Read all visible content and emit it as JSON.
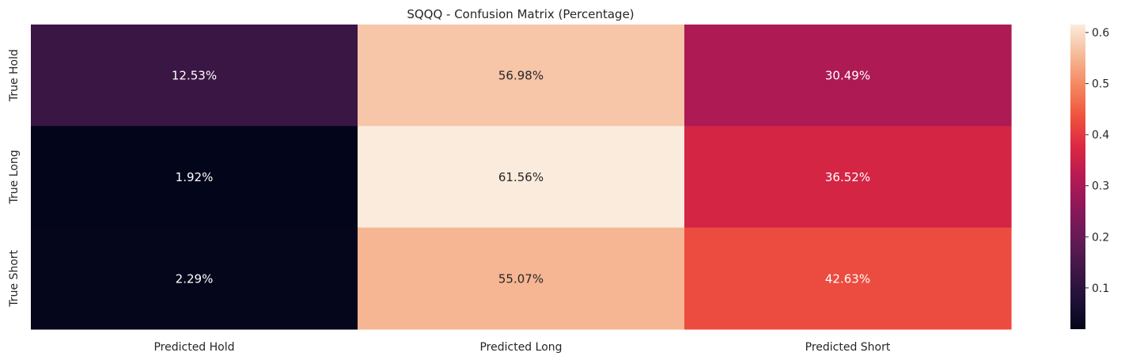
{
  "chart_data": {
    "type": "heatmap",
    "title": "SQQQ - Confusion Matrix (Percentage)",
    "xlabel": "",
    "ylabel": "",
    "x_categories": [
      "Predicted Hold",
      "Predicted Long",
      "Predicted Short"
    ],
    "y_categories": [
      "True Hold",
      "True Long",
      "True Short"
    ],
    "values": [
      [
        0.1253,
        0.5698,
        0.3049
      ],
      [
        0.0192,
        0.6156,
        0.3652
      ],
      [
        0.0229,
        0.5507,
        0.4263
      ]
    ],
    "annotations": [
      [
        "12.53%",
        "56.98%",
        "30.49%"
      ],
      [
        "1.92%",
        "61.56%",
        "36.52%"
      ],
      [
        "2.29%",
        "55.07%",
        "42.63%"
      ]
    ],
    "colorbar": {
      "range": [
        0.0192,
        0.6156
      ],
      "ticks": [
        0.1,
        0.2,
        0.3,
        0.4,
        0.5,
        0.6
      ],
      "tick_labels": [
        "0.1",
        "0.2",
        "0.3",
        "0.4",
        "0.5",
        "0.6"
      ],
      "colormap": "rocket"
    },
    "grid": false,
    "legend": "right"
  }
}
